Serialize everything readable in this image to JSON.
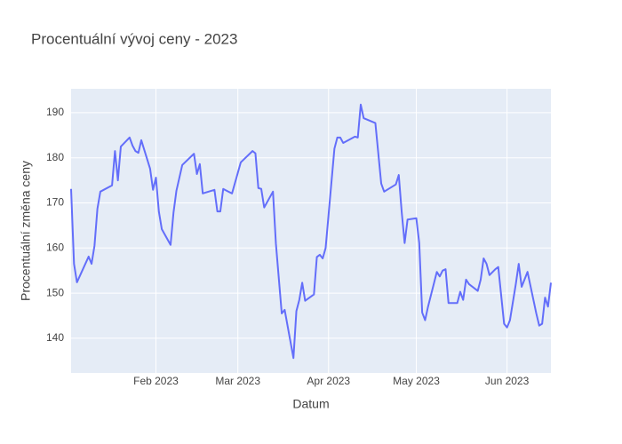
{
  "chart_data": {
    "type": "line",
    "title": "Procentuální vývoj ceny - 2023",
    "x_label": "Datum",
    "y_label": "Procentuální změna ceny",
    "color": "#636efa",
    "grid": true,
    "xlim": [
      "2023-01-03",
      "2023-06-16"
    ],
    "xticks": [
      {
        "value": "2023-02-01",
        "label": "Feb 2023"
      },
      {
        "value": "2023-03-01",
        "label": "Mar 2023"
      },
      {
        "value": "2023-04-01",
        "label": "Apr 2023"
      },
      {
        "value": "2023-05-01",
        "label": "May 2023"
      },
      {
        "value": "2023-06-01",
        "label": "Jun 2023"
      }
    ],
    "ylim": [
      132.3,
      195.3
    ],
    "yticks": [
      140,
      150,
      160,
      170,
      180,
      190
    ],
    "x": [
      "2023-01-03",
      "2023-01-04",
      "2023-01-05",
      "2023-01-09",
      "2023-01-10",
      "2023-01-11",
      "2023-01-12",
      "2023-01-13",
      "2023-01-17",
      "2023-01-18",
      "2023-01-19",
      "2023-01-20",
      "2023-01-23",
      "2023-01-24",
      "2023-01-25",
      "2023-01-26",
      "2023-01-27",
      "2023-01-30",
      "2023-01-31",
      "2023-02-01",
      "2023-02-02",
      "2023-02-03",
      "2023-02-06",
      "2023-02-07",
      "2023-02-08",
      "2023-02-10",
      "2023-02-14",
      "2023-02-15",
      "2023-02-16",
      "2023-02-17",
      "2023-02-21",
      "2023-02-22",
      "2023-02-23",
      "2023-02-24",
      "2023-02-27",
      "2023-03-02",
      "2023-03-06",
      "2023-03-07",
      "2023-03-08",
      "2023-03-09",
      "2023-03-10",
      "2023-03-13",
      "2023-03-14",
      "2023-03-16",
      "2023-03-17",
      "2023-03-20",
      "2023-03-21",
      "2023-03-22",
      "2023-03-23",
      "2023-03-24",
      "2023-03-27",
      "2023-03-28",
      "2023-03-29",
      "2023-03-30",
      "2023-03-31",
      "2023-04-03",
      "2023-04-04",
      "2023-04-05",
      "2023-04-06",
      "2023-04-10",
      "2023-04-11",
      "2023-04-12",
      "2023-04-13",
      "2023-04-17",
      "2023-04-18",
      "2023-04-19",
      "2023-04-20",
      "2023-04-24",
      "2023-04-25",
      "2023-04-26",
      "2023-04-27",
      "2023-04-28",
      "2023-05-01",
      "2023-05-02",
      "2023-05-03",
      "2023-05-04",
      "2023-05-05",
      "2023-05-08",
      "2023-05-09",
      "2023-05-10",
      "2023-05-11",
      "2023-05-12",
      "2023-05-15",
      "2023-05-16",
      "2023-05-17",
      "2023-05-18",
      "2023-05-19",
      "2023-05-22",
      "2023-05-23",
      "2023-05-24",
      "2023-05-25",
      "2023-05-26",
      "2023-05-28",
      "2023-05-29",
      "2023-05-31",
      "2023-06-01",
      "2023-06-02",
      "2023-06-04",
      "2023-06-05",
      "2023-06-06",
      "2023-06-08",
      "2023-06-11",
      "2023-06-12",
      "2023-06-13",
      "2023-06-14",
      "2023-06-15",
      "2023-06-16"
    ],
    "values": [
      173.1,
      156.5,
      152.4,
      158.1,
      156.5,
      160.5,
      168.7,
      172.5,
      173.9,
      181.5,
      175.0,
      182.5,
      184.5,
      182.7,
      181.5,
      181.1,
      183.9,
      177.6,
      172.9,
      175.6,
      168.1,
      164.2,
      160.7,
      167.8,
      172.7,
      178.4,
      180.9,
      176.4,
      178.6,
      172.1,
      172.9,
      168.1,
      168.1,
      173.1,
      172.1,
      179.0,
      181.5,
      181.0,
      173.3,
      173.1,
      169.0,
      172.5,
      161.0,
      145.5,
      146.3,
      135.6,
      146.0,
      148.5,
      152.3,
      148.3,
      149.7,
      158.0,
      158.5,
      157.7,
      160.0,
      182.0,
      184.5,
      184.5,
      183.3,
      184.7,
      184.5,
      191.8,
      188.8,
      187.7,
      181.0,
      174.3,
      172.5,
      174.1,
      176.2,
      168.0,
      161.1,
      166.3,
      166.6,
      161.1,
      145.7,
      144.0,
      147.0,
      154.7,
      153.7,
      155.0,
      155.3,
      147.8,
      147.8,
      150.3,
      148.5,
      153.0,
      152.0,
      150.5,
      153.0,
      157.7,
      156.5,
      154.0,
      155.3,
      155.8,
      143.2,
      142.4,
      144.0,
      152.0,
      156.5,
      151.4,
      154.7,
      145.5,
      142.8,
      143.2,
      149.0,
      147.0,
      152.3
    ]
  }
}
